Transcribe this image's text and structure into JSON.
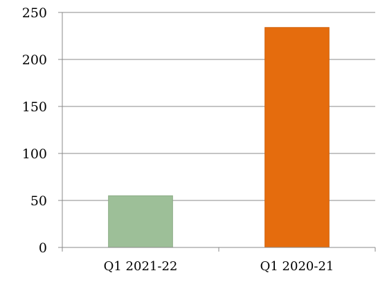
{
  "chart_data": {
    "type": "bar",
    "categories": [
      "Q1 2021-22",
      "Q1 2020-21"
    ],
    "values": [
      55,
      234
    ],
    "ylim": [
      0,
      250
    ],
    "yticks": [
      0,
      50,
      100,
      150,
      200,
      250
    ],
    "grid": true,
    "legend": "none",
    "colors": {
      "bars": [
        "#9dbf98",
        "#e56c0d"
      ],
      "bar_borders": [
        "#8aab85",
        "#cf5f08"
      ],
      "axis": "#888888"
    }
  }
}
